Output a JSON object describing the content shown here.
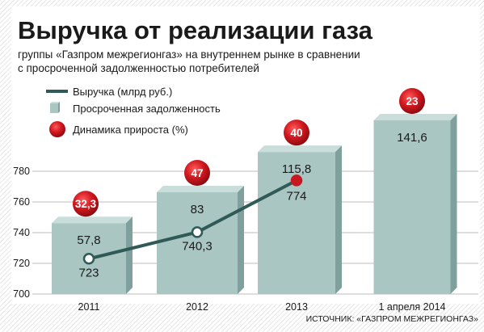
{
  "title": "Выручка от реализации газа",
  "subtitle_line1": "группы «Газпром межрегионгаз» на внутреннем рынке в сравнении",
  "subtitle_line2": "с просроченной задолженностью потребителей",
  "source": "ИСТОЧНИК: «ГАЗПРОМ МЕЖРЕГИОНГАЗ»",
  "colors": {
    "line": "#2f5a57",
    "bar_face": "#a9c6c3",
    "bar_side": "#7fa09d",
    "bar_top": "#c9dddb",
    "circle": "#c8171e",
    "background": "#ffffff"
  },
  "chart_data": {
    "type": "bar+line",
    "categories": [
      "2011",
      "2012",
      "2013",
      "1 апреля 2014"
    ],
    "y_ticks": [
      "700",
      "720",
      "740",
      "760",
      "780"
    ],
    "ylim": [
      700,
      780
    ],
    "series": [
      {
        "name": "Выручка (млрд руб.)",
        "type": "line",
        "values": [
          723,
          740.3,
          774,
          null
        ],
        "labels": [
          "723",
          "740,3",
          "774",
          ""
        ]
      },
      {
        "name": "Просроченная задолженность",
        "type": "bar",
        "values": [
          57.8,
          83,
          115.8,
          141.6
        ],
        "labels": [
          "57,8",
          "83",
          "115,8",
          "141,6"
        ]
      },
      {
        "name": "Динамика прироста (%)",
        "type": "badge",
        "values": [
          32.3,
          47,
          40,
          23
        ],
        "labels": [
          "32,3",
          "47",
          "40",
          "23"
        ]
      }
    ],
    "legend_position": "top-left",
    "grid": true
  }
}
